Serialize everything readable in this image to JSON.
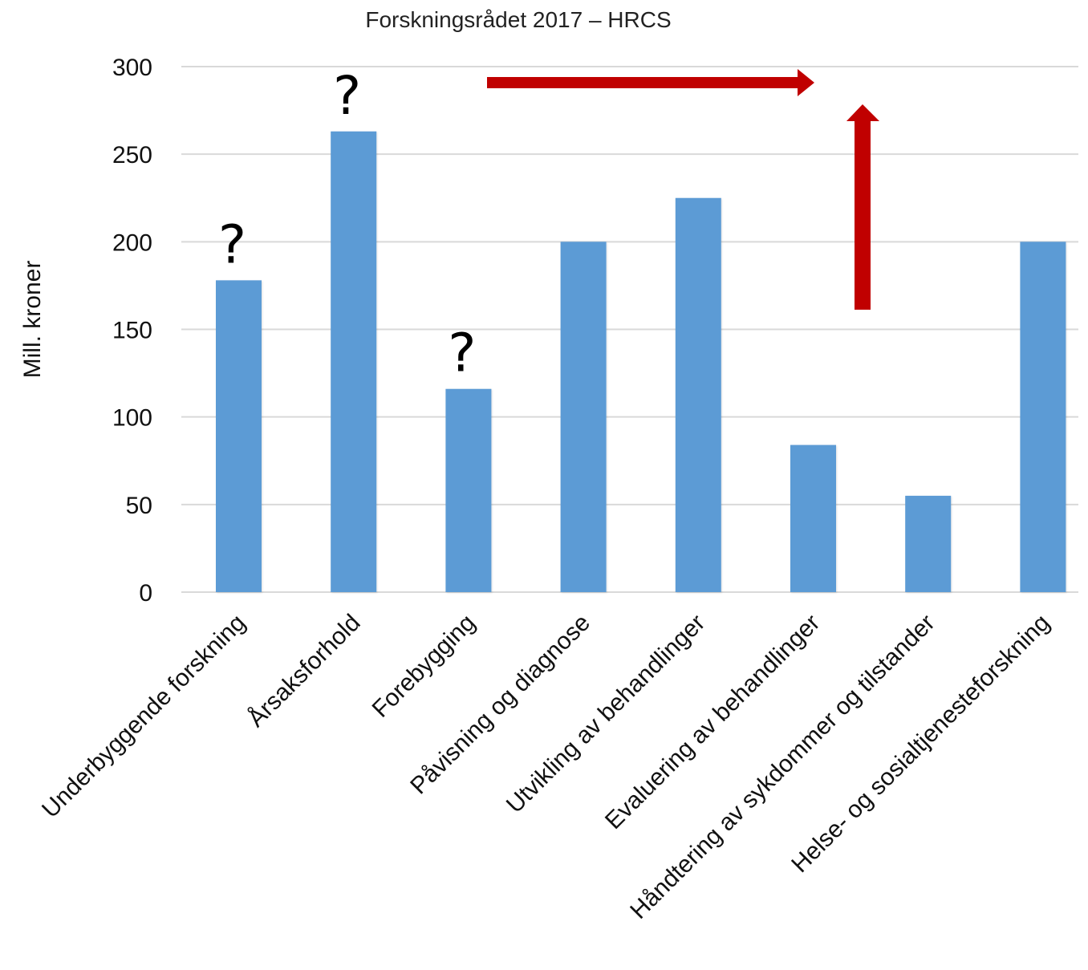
{
  "chart_data": {
    "type": "bar",
    "title": "Forskningsrådet 2017 – HRCS",
    "xlabel": "",
    "ylabel": "Mill. kroner",
    "ylim": [
      0,
      300
    ],
    "yticks": [
      0,
      50,
      100,
      150,
      200,
      250,
      300
    ],
    "grid": true,
    "legend": "none",
    "bar_color": "#5B9BD5",
    "grid_color": "#D9D9D9",
    "arrow_color": "#C00000",
    "categories": [
      "Underbyggende forskning",
      "Årsaksforhold",
      "Forebygging",
      "Påvisning og diagnose",
      "Utvikling av behandlinger",
      "Evaluering av behandlinger",
      "Håndtering av sykdommer og tilstander",
      "Helse- og sosialtjenesteforskning"
    ],
    "values": [
      178,
      263,
      116,
      200,
      225,
      84,
      55,
      200
    ],
    "annotations": [
      {
        "category": "Underbyggende forskning",
        "text": "?"
      },
      {
        "category": "Årsaksforhold",
        "text": "?"
      },
      {
        "category": "Forebygging",
        "text": "?"
      }
    ]
  }
}
